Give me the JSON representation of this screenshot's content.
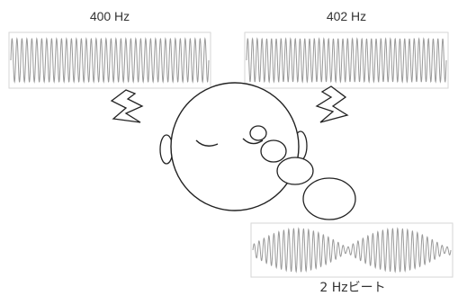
{
  "labels": {
    "left_wave": "400 Hz",
    "right_wave": "402 Hz",
    "beat_wave": "2 Hzビート"
  },
  "colors": {
    "wave": "#9a9a9a",
    "outline": "#222222",
    "frame": "#bdbdbd"
  }
}
